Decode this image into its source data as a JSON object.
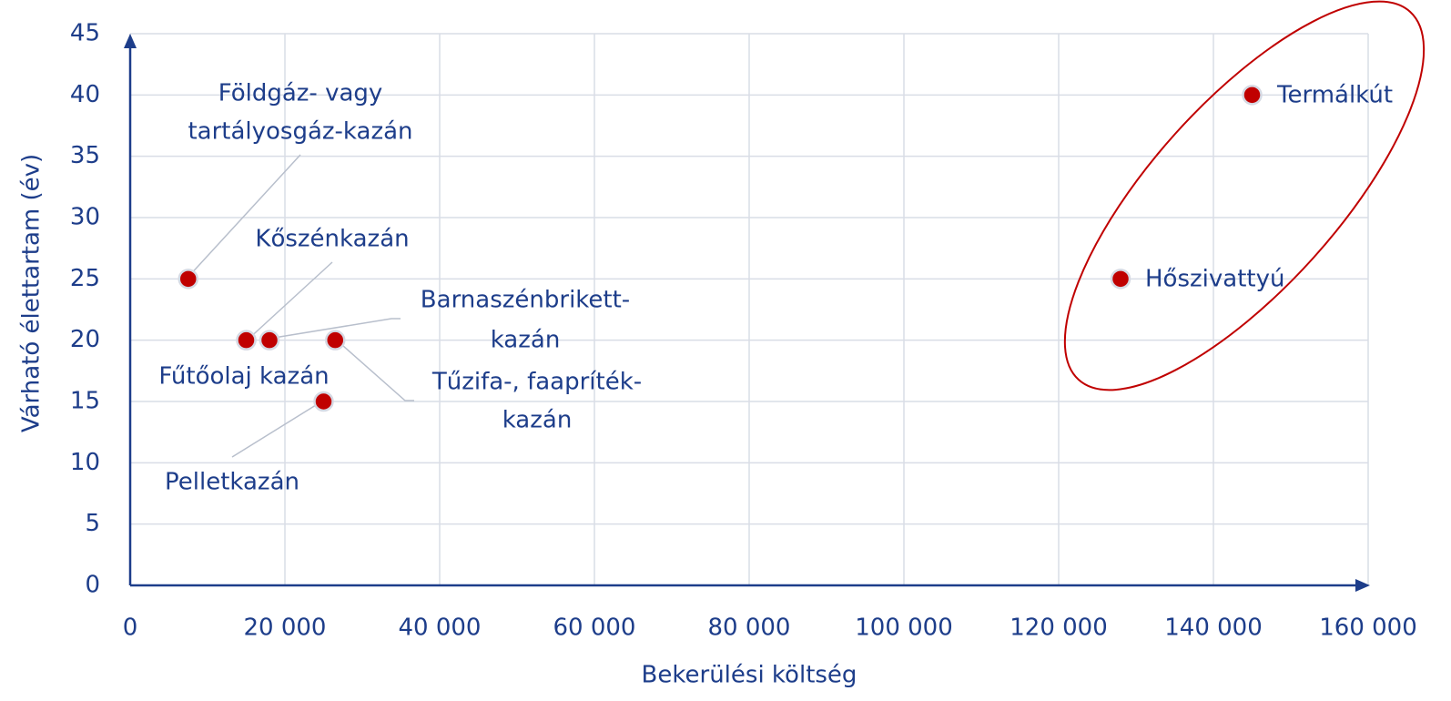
{
  "chart_data": {
    "type": "scatter",
    "x_label": "Bekerülési költség",
    "y_label": "Várható élettartam (év)",
    "x": [
      7500,
      15000,
      15000,
      18000,
      26500,
      25000,
      128000,
      145000
    ],
    "values": [
      25,
      20,
      20,
      20,
      20,
      15,
      25,
      40
    ],
    "labels": [
      [
        "Földgáz- vagy",
        "tartályosgáz-kazán"
      ],
      [
        "Kőszénkazán"
      ],
      [
        "Fűtőolaj kazán"
      ],
      [
        "Barnaszénbrikett-",
        "kazán"
      ],
      [
        "Tűzifa-, faapríték-",
        "kazán"
      ],
      [
        "Pelletkazán"
      ],
      [
        "Hőszivattyú"
      ],
      [
        "Termálkút"
      ]
    ],
    "color": "#c00000",
    "xlim": [
      0,
      160000
    ],
    "ylim": [
      0,
      45
    ],
    "xticks": [
      0,
      {
        "value": 20000,
        "label": "20 000"
      },
      {
        "value": 40000,
        "label": "40 000"
      },
      {
        "value": 60000,
        "label": "60 000"
      },
      {
        "value": 80000,
        "label": "80 000"
      },
      {
        "value": 100000,
        "label": "100 000"
      },
      {
        "value": 120000,
        "label": "120 000"
      },
      {
        "value": 140000,
        "label": "140 000"
      },
      {
        "value": 160000,
        "label": "160 000"
      }
    ],
    "yticks": [
      0,
      5,
      10,
      15,
      20,
      25,
      30,
      35,
      40,
      45
    ],
    "grid": true
  }
}
